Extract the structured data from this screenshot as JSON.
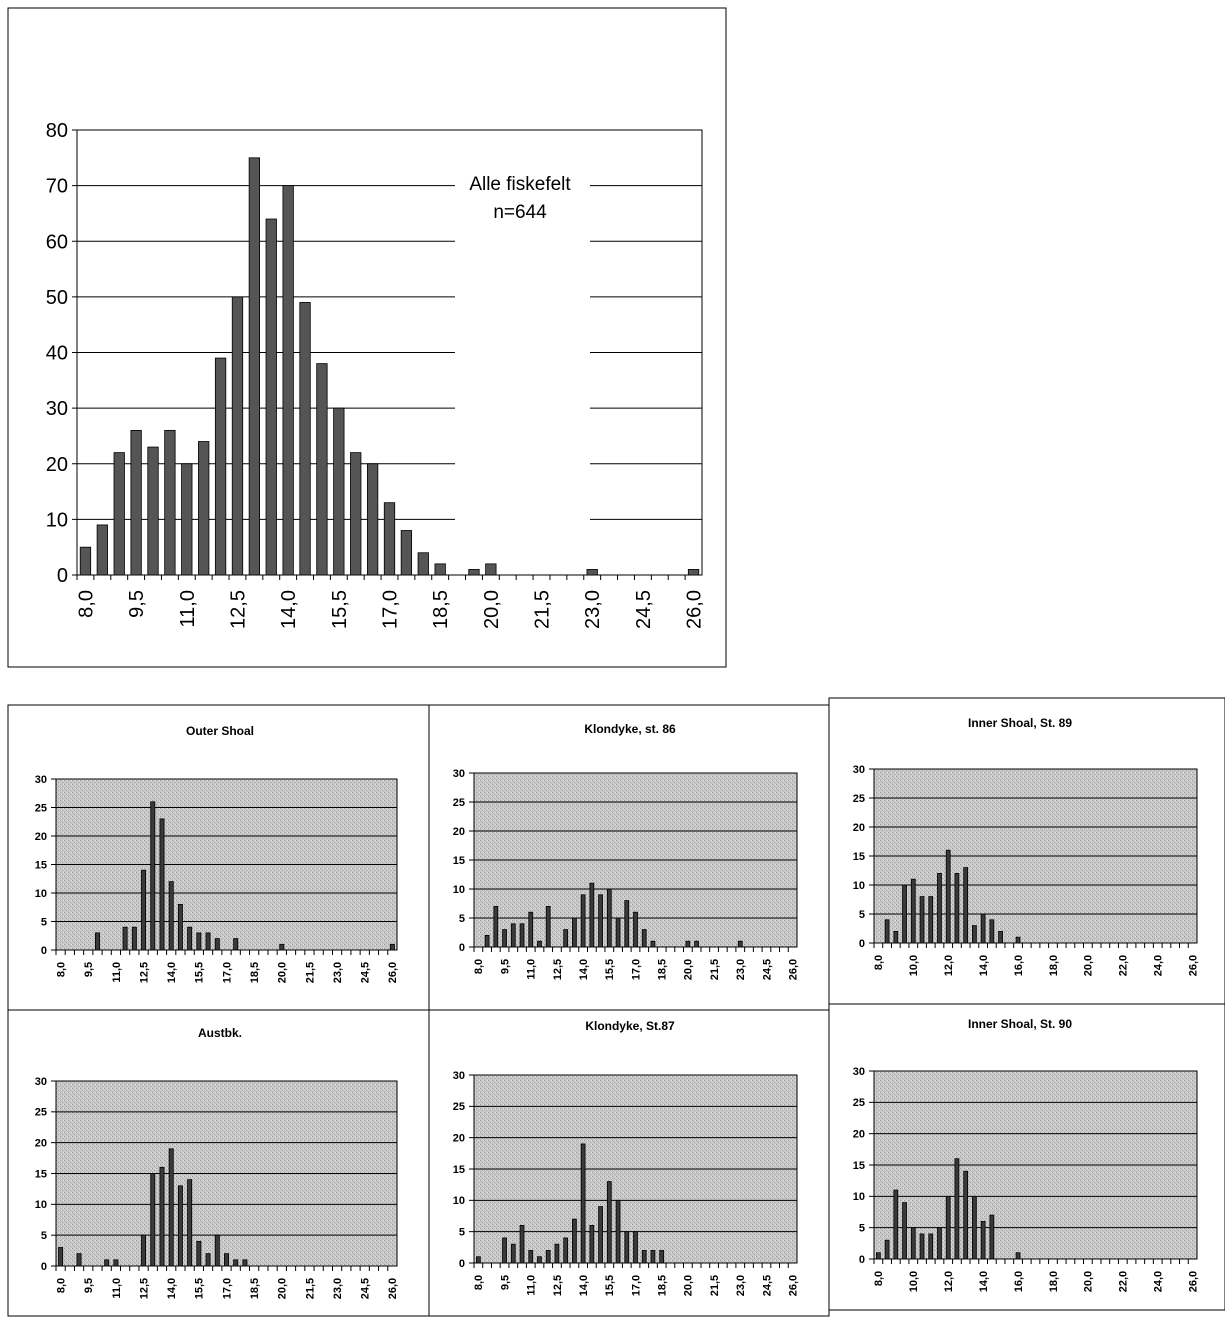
{
  "chart_data": [
    {
      "type": "bar",
      "title": "Alle fiskefelt",
      "subtitle": "n=644",
      "x": [
        8.0,
        8.5,
        9.0,
        9.5,
        10.0,
        10.5,
        11.0,
        11.5,
        12.0,
        12.5,
        13.0,
        13.5,
        14.0,
        14.5,
        15.0,
        15.5,
        16.0,
        16.5,
        17.0,
        17.5,
        18.0,
        18.5,
        19.0,
        19.5,
        20.0,
        20.5,
        21.0,
        21.5,
        22.0,
        22.5,
        23.0,
        23.5,
        24.0,
        24.5,
        25.0,
        25.5,
        26.0
      ],
      "values": [
        5,
        9,
        22,
        26,
        23,
        26,
        20,
        24,
        39,
        50,
        75,
        64,
        70,
        49,
        38,
        30,
        22,
        20,
        13,
        8,
        4,
        2,
        0,
        1,
        2,
        0,
        0,
        0,
        0,
        0,
        1,
        0,
        0,
        0,
        0,
        0,
        1
      ],
      "x_tick_labels": [
        "8,0",
        "9,5",
        "11,0",
        "12,5",
        "14,0",
        "15,5",
        "17,0",
        "18,5",
        "20,0",
        "21,5",
        "23,0",
        "24,5",
        "26,0"
      ],
      "ylim": [
        0,
        80
      ],
      "y_ticks": [
        0,
        10,
        20,
        30,
        40,
        50,
        60,
        70,
        80
      ],
      "grid": true,
      "background": "#ffffff",
      "bar_color": "#555555"
    },
    {
      "type": "bar",
      "title": "Outer Shoal",
      "x": [
        8.0,
        8.5,
        9.0,
        9.5,
        10.0,
        10.5,
        11.0,
        11.5,
        12.0,
        12.5,
        13.0,
        13.5,
        14.0,
        14.5,
        15.0,
        15.5,
        16.0,
        16.5,
        17.0,
        17.5,
        18.0,
        18.5,
        19.0,
        19.5,
        20.0,
        20.5,
        21.0,
        21.5,
        22.0,
        22.5,
        23.0,
        23.5,
        24.0,
        24.5,
        25.0,
        25.5,
        26.0
      ],
      "values": [
        0,
        0,
        0,
        0,
        3,
        0,
        0,
        4,
        4,
        14,
        26,
        23,
        12,
        8,
        4,
        3,
        3,
        2,
        0,
        2,
        0,
        0,
        0,
        0,
        1,
        0,
        0,
        0,
        0,
        0,
        0,
        0,
        0,
        0,
        0,
        0,
        1
      ],
      "x_tick_labels": [
        "8,0",
        "9,5",
        "11,0",
        "12,5",
        "14,0",
        "15,5",
        "17,0",
        "18,5",
        "20,0",
        "21,5",
        "23,0",
        "24,5",
        "26,0"
      ],
      "ylim": [
        0,
        30
      ],
      "y_ticks": [
        0,
        5,
        10,
        15,
        20,
        25,
        30
      ],
      "grid": true,
      "background": "#c8c8c8",
      "bar_color": "#3a3a3a"
    },
    {
      "type": "bar",
      "title": "Klondyke, st. 86",
      "x": [
        8.0,
        8.5,
        9.0,
        9.5,
        10.0,
        10.5,
        11.0,
        11.5,
        12.0,
        12.5,
        13.0,
        13.5,
        14.0,
        14.5,
        15.0,
        15.5,
        16.0,
        16.5,
        17.0,
        17.5,
        18.0,
        18.5,
        19.0,
        19.5,
        20.0,
        20.5,
        21.0,
        21.5,
        22.0,
        22.5,
        23.0,
        23.5,
        24.0,
        24.5,
        25.0,
        25.5,
        26.0
      ],
      "values": [
        0,
        2,
        7,
        3,
        4,
        4,
        6,
        1,
        7,
        0,
        3,
        5,
        9,
        11,
        9,
        10,
        5,
        8,
        6,
        3,
        1,
        0,
        0,
        0,
        1,
        1,
        0,
        0,
        0,
        0,
        1,
        0,
        0,
        0,
        0,
        0,
        0
      ],
      "x_tick_labels": [
        "8,0",
        "9,5",
        "11,0",
        "12,5",
        "14,0",
        "15,5",
        "17,0",
        "18,5",
        "20,0",
        "21,5",
        "23,0",
        "24,5",
        "26,0"
      ],
      "ylim": [
        0,
        30
      ],
      "y_ticks": [
        0,
        5,
        10,
        15,
        20,
        25,
        30
      ],
      "grid": true,
      "background": "#c8c8c8",
      "bar_color": "#3a3a3a"
    },
    {
      "type": "bar",
      "title": "Inner Shoal, St. 89",
      "x": [
        8.0,
        8.5,
        9.0,
        9.5,
        10.0,
        10.5,
        11.0,
        11.5,
        12.0,
        12.5,
        13.0,
        13.5,
        14.0,
        14.5,
        15.0,
        15.5,
        16.0,
        16.5,
        17.0,
        17.5,
        18.0,
        18.5,
        19.0,
        19.5,
        20.0,
        20.5,
        21.0,
        21.5,
        22.0,
        22.5,
        23.0,
        23.5,
        24.0,
        24.5,
        25.0,
        25.5,
        26.0
      ],
      "values": [
        0,
        4,
        2,
        10,
        11,
        8,
        8,
        12,
        16,
        12,
        13,
        3,
        5,
        4,
        2,
        0,
        1,
        0,
        0,
        0,
        0,
        0,
        0,
        0,
        0,
        0,
        0,
        0,
        0,
        0,
        0,
        0,
        0,
        0,
        0,
        0,
        0
      ],
      "x_tick_labels": [
        "8,0",
        "10,0",
        "12,0",
        "14,0",
        "16,0",
        "18,0",
        "20,0",
        "22,0",
        "24,0",
        "26,0"
      ],
      "ylim": [
        0,
        30
      ],
      "y_ticks": [
        0,
        5,
        10,
        15,
        20,
        25,
        30
      ],
      "grid": true,
      "background": "#c8c8c8",
      "bar_color": "#3a3a3a"
    },
    {
      "type": "bar",
      "title": "Austbk.",
      "x": [
        8.0,
        8.5,
        9.0,
        9.5,
        10.0,
        10.5,
        11.0,
        11.5,
        12.0,
        12.5,
        13.0,
        13.5,
        14.0,
        14.5,
        15.0,
        15.5,
        16.0,
        16.5,
        17.0,
        17.5,
        18.0,
        18.5,
        19.0,
        19.5,
        20.0,
        20.5,
        21.0,
        21.5,
        22.0,
        22.5,
        23.0,
        23.5,
        24.0,
        24.5,
        25.0,
        25.5,
        26.0
      ],
      "values": [
        3,
        0,
        2,
        0,
        0,
        1,
        1,
        0,
        0,
        5,
        15,
        16,
        19,
        13,
        14,
        4,
        2,
        5,
        2,
        1,
        1,
        0,
        0,
        0,
        0,
        0,
        0,
        0,
        0,
        0,
        0,
        0,
        0,
        0,
        0,
        0,
        0
      ],
      "x_tick_labels": [
        "8,0",
        "9,5",
        "11,0",
        "12,5",
        "14,0",
        "15,5",
        "17,0",
        "18,5",
        "20,0",
        "21,5",
        "23,0",
        "24,5",
        "26,0"
      ],
      "ylim": [
        0,
        30
      ],
      "y_ticks": [
        0,
        5,
        10,
        15,
        20,
        25,
        30
      ],
      "grid": true,
      "background": "#c8c8c8",
      "bar_color": "#3a3a3a"
    },
    {
      "type": "bar",
      "title": "Klondyke, St.87",
      "x": [
        8.0,
        8.5,
        9.0,
        9.5,
        10.0,
        10.5,
        11.0,
        11.5,
        12.0,
        12.5,
        13.0,
        13.5,
        14.0,
        14.5,
        15.0,
        15.5,
        16.0,
        16.5,
        17.0,
        17.5,
        18.0,
        18.5,
        19.0,
        19.5,
        20.0,
        20.5,
        21.0,
        21.5,
        22.0,
        22.5,
        23.0,
        23.5,
        24.0,
        24.5,
        25.0,
        25.5,
        26.0
      ],
      "values": [
        1,
        0,
        0,
        4,
        3,
        6,
        2,
        1,
        2,
        3,
        4,
        7,
        19,
        6,
        9,
        13,
        10,
        5,
        5,
        2,
        2,
        2,
        0,
        0,
        0,
        0,
        0,
        0,
        0,
        0,
        0,
        0,
        0,
        0,
        0,
        0,
        0
      ],
      "x_tick_labels": [
        "8,0",
        "9,5",
        "11,0",
        "12,5",
        "14,0",
        "15,5",
        "17,0",
        "18,5",
        "20,0",
        "21,5",
        "23,0",
        "24,5",
        "26,0"
      ],
      "ylim": [
        0,
        30
      ],
      "y_ticks": [
        0,
        5,
        10,
        15,
        20,
        25,
        30
      ],
      "grid": true,
      "background": "#c8c8c8",
      "bar_color": "#3a3a3a"
    },
    {
      "type": "bar",
      "title": "Inner Shoal, St. 90",
      "x": [
        8.0,
        8.5,
        9.0,
        9.5,
        10.0,
        10.5,
        11.0,
        11.5,
        12.0,
        12.5,
        13.0,
        13.5,
        14.0,
        14.5,
        15.0,
        15.5,
        16.0,
        16.5,
        17.0,
        17.5,
        18.0,
        18.5,
        19.0,
        19.5,
        20.0,
        20.5,
        21.0,
        21.5,
        22.0,
        22.5,
        23.0,
        23.5,
        24.0,
        24.5,
        25.0,
        25.5,
        26.0
      ],
      "values": [
        1,
        3,
        11,
        9,
        5,
        4,
        4,
        5,
        10,
        16,
        14,
        10,
        6,
        7,
        0,
        0,
        1,
        0,
        0,
        0,
        0,
        0,
        0,
        0,
        0,
        0,
        0,
        0,
        0,
        0,
        0,
        0,
        0,
        0,
        0,
        0,
        0
      ],
      "x_tick_labels": [
        "8,0",
        "10,0",
        "12,0",
        "14,0",
        "16,0",
        "18,0",
        "20,0",
        "22,0",
        "24,0",
        "26,0"
      ],
      "ylim": [
        0,
        30
      ],
      "y_ticks": [
        0,
        5,
        10,
        15,
        20,
        25,
        30
      ],
      "grid": true,
      "background": "#c8c8c8",
      "bar_color": "#3a3a3a"
    }
  ]
}
